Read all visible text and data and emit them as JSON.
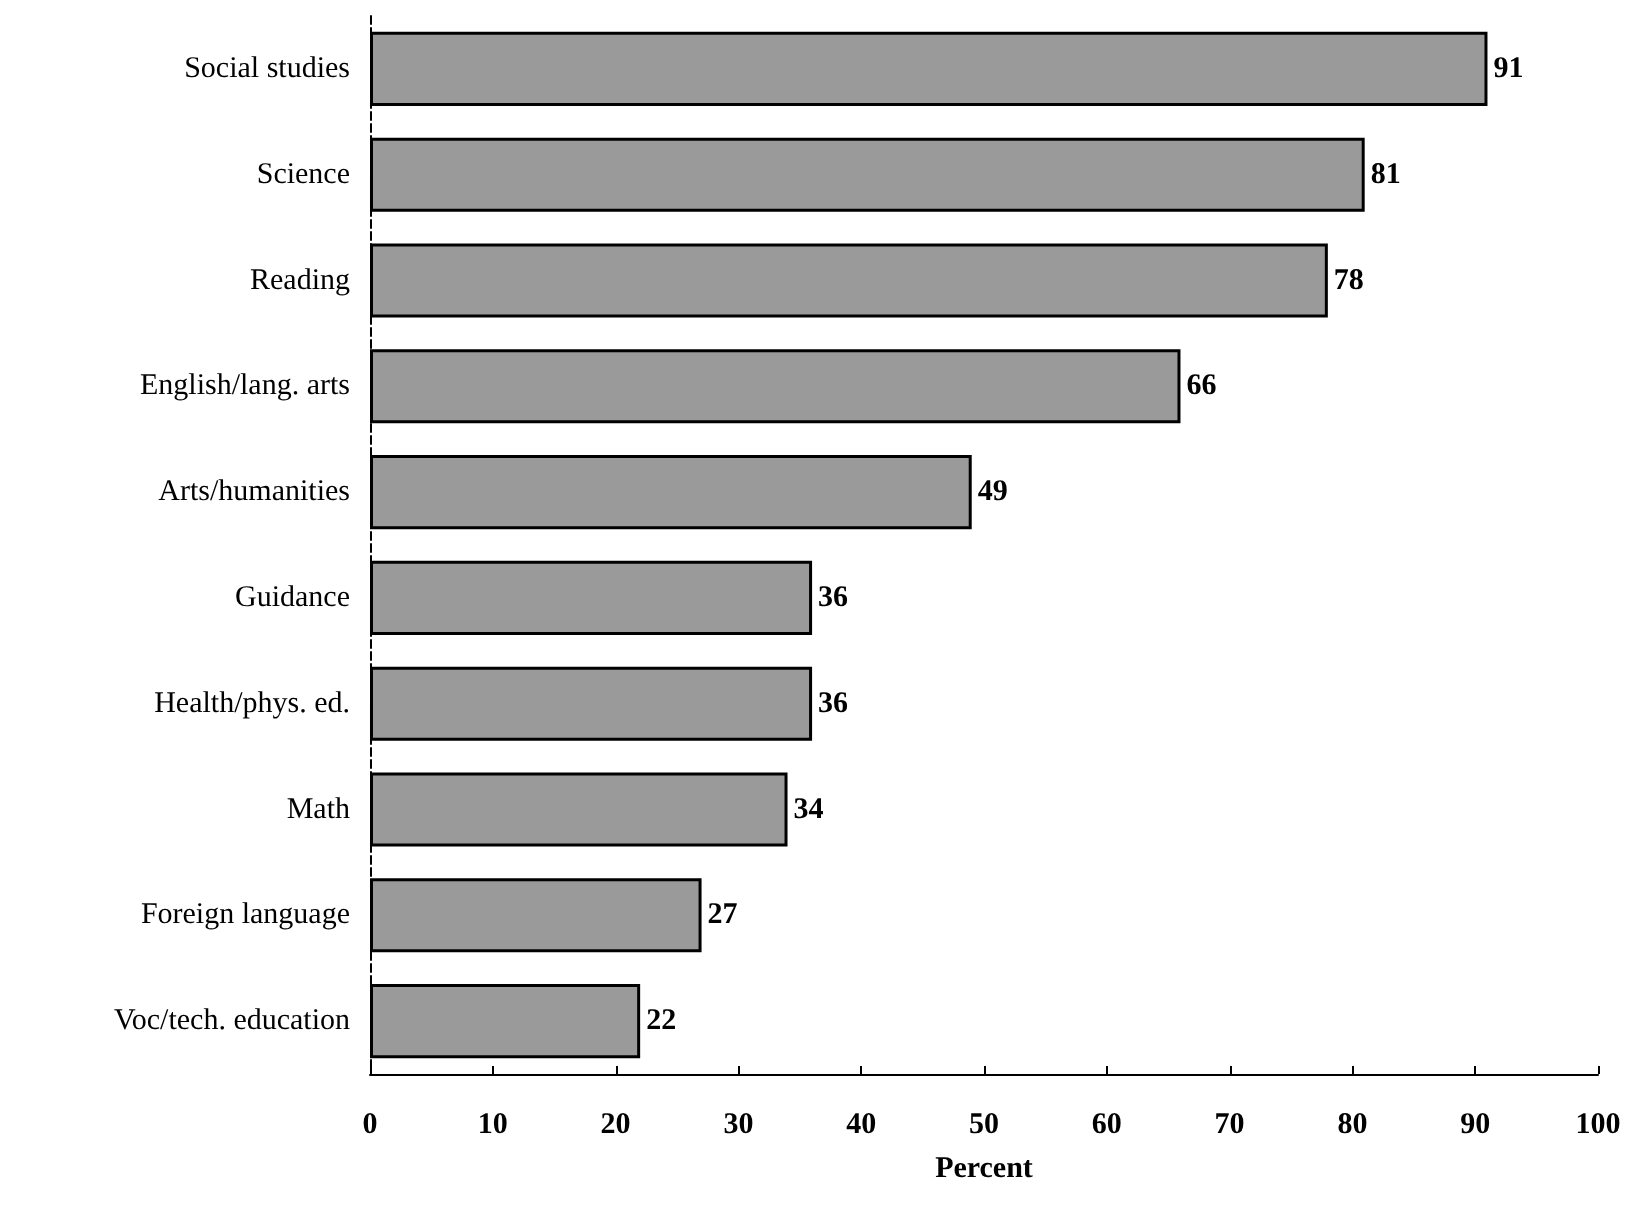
{
  "chart_data": {
    "type": "bar",
    "orientation": "horizontal",
    "xlabel": "Percent",
    "categories": [
      "Social studies",
      "Science",
      "Reading",
      "English/lang. arts",
      "Arts/humanities",
      "Guidance",
      "Health/phys. ed.",
      "Math",
      "Foreign language",
      "Voc/tech. education"
    ],
    "values": [
      91,
      81,
      78,
      66,
      49,
      36,
      36,
      34,
      27,
      22
    ],
    "color": "#9a9a9a",
    "xlim": [
      0,
      100
    ],
    "xticks": [
      0,
      10,
      20,
      30,
      40,
      50,
      60,
      70,
      80,
      90,
      100
    ],
    "data_labels": true,
    "grid": false
  }
}
